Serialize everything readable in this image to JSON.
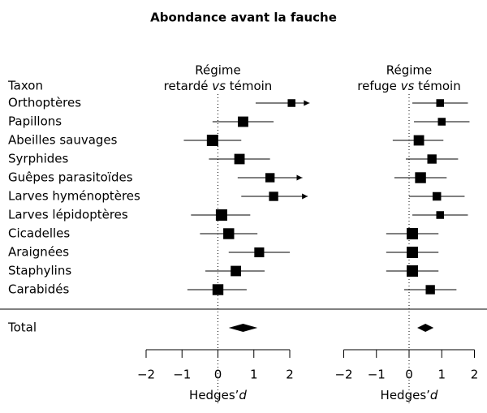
{
  "chart_data": {
    "type": "forest",
    "title": "Abondance avant la fauche",
    "row_header": "Taxon",
    "categories": [
      "Orthoptères",
      "Papillons",
      "Abeilles sauvages",
      "Syrphides",
      "Guêpes parasitoïdes",
      "Larves hyménoptères",
      "Larves lépidoptères",
      "Cicadelles",
      "Araignées",
      "Staphylins",
      "Carabidés"
    ],
    "total_label": "Total",
    "reference": 0,
    "color": "#000000",
    "panels": [
      {
        "header": {
          "top": "Régime",
          "left": "retardé",
          "vs": "vs",
          "right": "témoin"
        },
        "estimates": [
          2.05,
          0.7,
          -0.15,
          0.6,
          1.45,
          1.55,
          0.1,
          0.3,
          1.15,
          0.5,
          0.0
        ],
        "lower": [
          1.05,
          -0.15,
          -0.95,
          -0.25,
          0.55,
          0.65,
          -0.75,
          -0.5,
          0.3,
          -0.35,
          -0.85
        ],
        "upper": [
          2.55,
          1.55,
          0.65,
          1.45,
          2.35,
          2.5,
          0.9,
          1.1,
          2.0,
          1.3,
          0.8
        ],
        "weights": [
          1,
          3,
          4,
          3,
          2,
          2,
          4,
          3.5,
          2.5,
          3,
          3.5
        ],
        "total": {
          "estimate": 0.7,
          "lower": 0.3,
          "upper": 1.1
        },
        "xlim": [
          -2,
          2
        ],
        "xticks": [
          {
            "value": -2,
            "label": "−2"
          },
          {
            "value": -1,
            "label": "−1"
          },
          0,
          1,
          2
        ],
        "xlabel": "Hedges’",
        "xlabel_var": "d"
      },
      {
        "header": {
          "top": "Régime",
          "left": "refuge",
          "vs": "vs",
          "right": "témoin"
        },
        "estimates": [
          0.95,
          1.0,
          0.3,
          0.7,
          0.35,
          0.85,
          0.95,
          0.1,
          0.1,
          0.1,
          0.65
        ],
        "lower": [
          0.1,
          0.15,
          -0.5,
          -0.1,
          -0.45,
          0.0,
          0.1,
          -0.7,
          -0.7,
          -0.7,
          -0.15
        ],
        "upper": [
          1.8,
          1.85,
          1.05,
          1.5,
          1.15,
          1.7,
          1.8,
          0.9,
          0.9,
          0.9,
          1.45
        ],
        "weights": [
          1,
          1,
          3,
          2,
          3.5,
          1.5,
          1,
          4,
          4,
          4,
          2
        ],
        "total": {
          "estimate": 0.5,
          "lower": 0.25,
          "upper": 0.75
        },
        "xlim": [
          -2,
          2
        ],
        "xticks": [
          {
            "value": -2,
            "label": "−2"
          },
          {
            "value": -1,
            "label": "−1"
          },
          0,
          1,
          2
        ],
        "xlabel": "Hedges’",
        "xlabel_var": "d"
      }
    ]
  }
}
